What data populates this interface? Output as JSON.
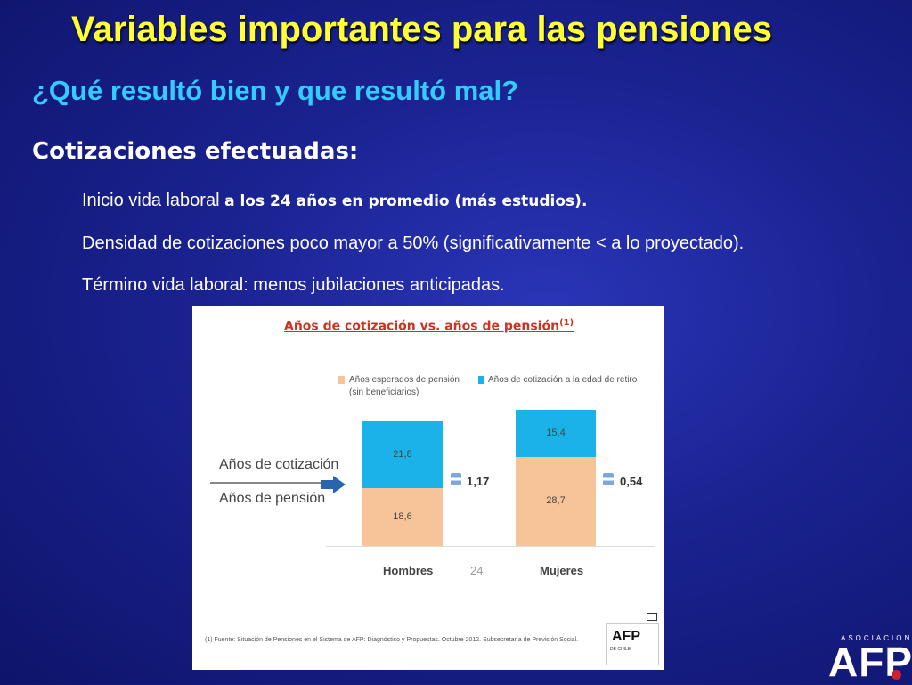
{
  "slide": {
    "title": "Variables importantes para las pensiones",
    "subtitle": "¿Qué resultó bien y que resultó mal?",
    "section": "Cotizaciones efectuadas:",
    "bullets": [
      {
        "text_normal": "Inicio vida laboral ",
        "text_bold": "a los 24 años en promedio (más estudios)."
      },
      {
        "text_normal": "Densidad de cotizaciones poco mayor a 50% (significativamente < a lo proyectado).",
        "text_bold": ""
      },
      {
        "text_normal": "Término vida laboral: menos jubilaciones anticipadas.",
        "text_bold": ""
      }
    ]
  },
  "figure": {
    "title": "Años de cotización vs. años de pensión",
    "title_sup": "(1)",
    "fraction_top": "Años de cotización",
    "fraction_bottom": "Años de pensión",
    "axis_note": "24",
    "footnote": "(1)   Fuente: Situación de Pensiones en el Sistema de AFP: Diagnóstico y Propuestas. Octubre 2012. Subsecretaría de Previsión Social.",
    "afp_logo_text": "AFP",
    "afp_logo_sub": "DE CHILE"
  },
  "chart_data": {
    "type": "bar",
    "stacked": true,
    "title": "Años de cotización vs. años de pensión",
    "categories": [
      "Hombres",
      "Mujeres"
    ],
    "series": [
      {
        "name": "Años esperados de pensión (sin beneficiarios)",
        "color": "#f7c49a",
        "values": [
          18.6,
          28.7
        ],
        "labels": [
          "18,6",
          "28,7"
        ]
      },
      {
        "name": "Años de cotización a la edad de retiro",
        "color": "#1ab2e8",
        "values": [
          21.8,
          15.4
        ],
        "labels": [
          "21,8",
          "15,4"
        ]
      }
    ],
    "ratios": [
      "1,17",
      "0,54"
    ],
    "ylim": [
      0,
      45
    ]
  },
  "logo": {
    "small": "ASOCIACION",
    "big": "AFP"
  },
  "colors": {
    "title": "#ffff33",
    "subtitle": "#33ccff",
    "background": "#1a2290"
  }
}
